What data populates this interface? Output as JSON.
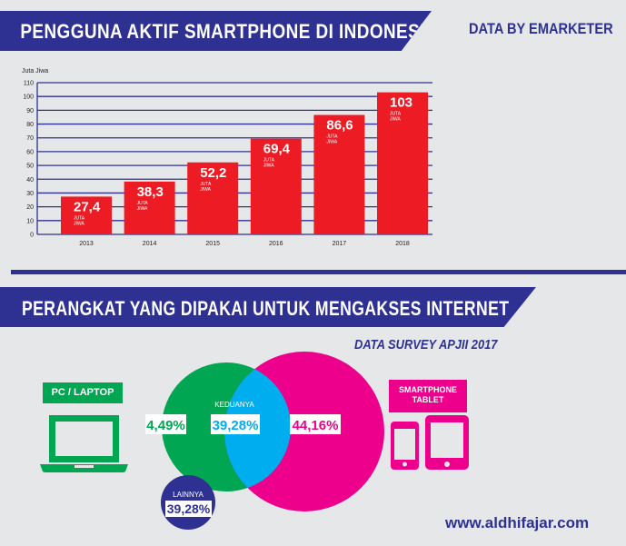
{
  "header": {
    "title": "PENGGUNA AKTIF SMARTPHONE DI INDONESIA",
    "source": "DATA BY EMARKETER"
  },
  "section2": {
    "title": "PERANGKAT YANG DIPAKAI UNTUK MENGAKSES INTERNET",
    "source": "DATA SURVEY APJII 2017"
  },
  "devices": {
    "pc_label": "PC / LAPTOP",
    "smartphone_label_line1": "SMARTPHONE",
    "smartphone_label_line2": "TABLET",
    "pc_icon": "laptop-icon",
    "phone_icon": "smartphone-icon",
    "tablet_icon": "tablet-icon"
  },
  "venn": {
    "pc_only": "4,49%",
    "both_label": "KEDUANYA",
    "both": "39,28%",
    "phone_only": "44,16%",
    "other_label": "LAINNYA",
    "other": "39,28%"
  },
  "footer": {
    "website": "www.aldhifajar.com"
  },
  "colors": {
    "navy": "#2e3192",
    "bar": "#ed1c24",
    "green": "#00a651",
    "blue": "#00aeef",
    "magenta": "#ec008c"
  },
  "chart_data": {
    "type": "bar",
    "ylabel": "Juta Jiwa",
    "categories": [
      "2013",
      "2014",
      "2015",
      "2016",
      "2017",
      "2018"
    ],
    "values": [
      27.4,
      38.3,
      52.2,
      69.4,
      86.6,
      103
    ],
    "value_labels": [
      "27,4",
      "38,3",
      "52,2",
      "69,4",
      "86,6",
      "103"
    ],
    "bar_unit_line1": "JUTA",
    "bar_unit_line2": "JIWA",
    "ylim": [
      0,
      110
    ],
    "yticks": [
      0,
      10,
      20,
      30,
      40,
      50,
      60,
      70,
      80,
      90,
      100,
      110
    ],
    "grid": true
  }
}
